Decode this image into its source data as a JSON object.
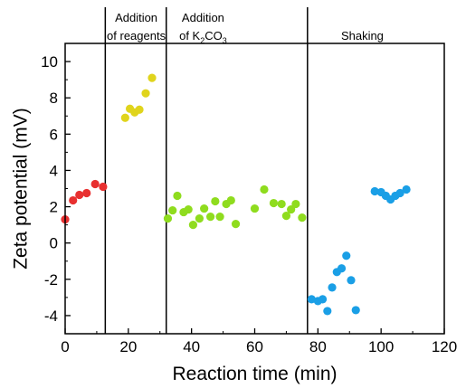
{
  "chart_data": {
    "type": "scatter",
    "xlabel": "Reaction time (min)",
    "ylabel": "Zeta potential (mV)",
    "xlim": [
      0,
      120
    ],
    "ylim": [
      -5,
      11
    ],
    "xticks": [
      0,
      20,
      40,
      60,
      80,
      100,
      120
    ],
    "yticks": [
      -4,
      -2,
      0,
      2,
      4,
      6,
      8,
      10
    ],
    "grid": false,
    "legend": "none",
    "phase_boundaries": [
      12.7,
      32.0,
      76.7
    ],
    "annotations": [
      {
        "id": "reagents",
        "line1": "Addition",
        "line2": "of reagents",
        "x": 22.5
      },
      {
        "id": "k2co3",
        "line1": "Addition",
        "line2_prefix": "of K",
        "line2_sub1": "2",
        "line2_mid": "CO",
        "line2_sub2": "3",
        "x": 38.5
      },
      {
        "id": "shaking",
        "line1": "Shaking",
        "x": 97.5
      }
    ],
    "series": [
      {
        "color": "#e83030",
        "x": [
          0,
          2.5,
          4.5,
          6.8,
          9.5,
          12
        ],
        "y": [
          1.3,
          2.35,
          2.65,
          2.75,
          3.25,
          3.1
        ]
      },
      {
        "color": "#e0d41c",
        "x": [
          19,
          20.5,
          22,
          23.5,
          25.5,
          27.5
        ],
        "y": [
          6.9,
          7.4,
          7.2,
          7.35,
          8.25,
          9.1
        ]
      },
      {
        "color": "#8fdc1e",
        "x": [
          32.5,
          34,
          35.5,
          37.5,
          39,
          40.5,
          42.5,
          44,
          46,
          47.5,
          49,
          51,
          52.5,
          54,
          60,
          63,
          66,
          68.5,
          70,
          71.5,
          73,
          75
        ],
        "y": [
          1.35,
          1.8,
          2.6,
          1.7,
          1.85,
          1.0,
          1.35,
          1.9,
          1.45,
          2.3,
          1.45,
          2.15,
          2.35,
          1.05,
          1.9,
          2.95,
          2.2,
          2.15,
          1.5,
          1.85,
          2.15,
          1.4
        ]
      },
      {
        "color": "#1a9fe6",
        "x": [
          78,
          80,
          81.5,
          83,
          84.5,
          86,
          87.5,
          89,
          90.5,
          92,
          98,
          100,
          101.5,
          103,
          104.5,
          106,
          108
        ],
        "y": [
          -3.1,
          -3.2,
          -3.1,
          -3.75,
          -2.45,
          -1.6,
          -1.4,
          -0.7,
          -2.05,
          -3.7,
          2.85,
          2.8,
          2.6,
          2.4,
          2.6,
          2.75,
          2.95
        ]
      }
    ]
  }
}
